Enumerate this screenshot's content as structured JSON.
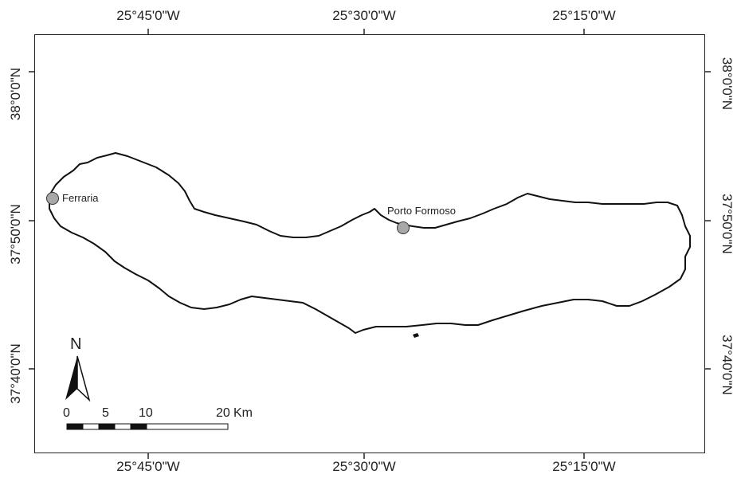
{
  "map": {
    "top_ticks": [
      "25°45'0\"W",
      "25°30'0\"W",
      "25°15'0\"W"
    ],
    "bottom_ticks": [
      "25°45'0\"W",
      "25°30'0\"W",
      "25°15'0\"W"
    ],
    "left_ticks": [
      "38°0'0\"N",
      "37°50'0\"N",
      "37°40'0\"N"
    ],
    "right_ticks": [
      "38°0'0\"N",
      "37°50'0\"N",
      "37°40'0\"N"
    ],
    "places": [
      {
        "name": "Ferraria"
      },
      {
        "name": "Porto Formoso"
      }
    ],
    "north_arrow": {
      "label": "N",
      "icon": "north-arrow-icon"
    },
    "scale_bar": {
      "ticks": [
        "0",
        "5",
        "10",
        "20"
      ],
      "unit": "Km"
    },
    "colors": {
      "outline": "#111111",
      "marker": "#a8a8a8",
      "frame": "#222222"
    }
  }
}
